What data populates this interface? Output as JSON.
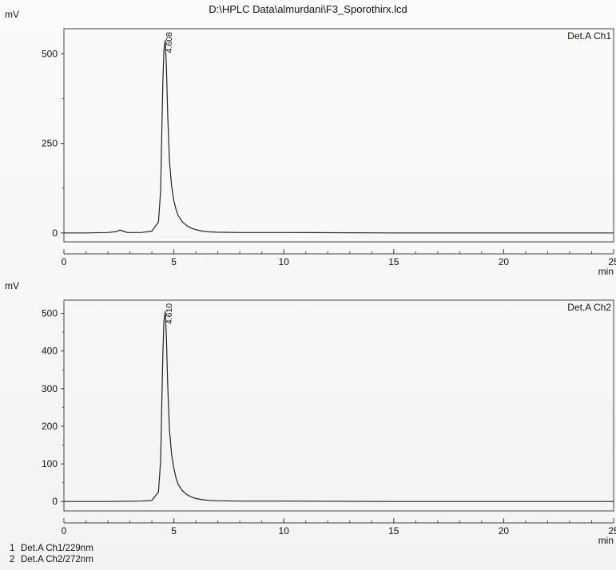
{
  "file_title": "D:\\HPLC Data\\almurdani\\F3_Sporothirx.lcd",
  "chart_data": [
    {
      "type": "line",
      "channel_label": "Det.A Ch1",
      "ylabel": "mV",
      "xlabel": "min",
      "xlim": [
        0,
        25
      ],
      "ylim": [
        -25,
        570
      ],
      "x_ticks": [
        0,
        5,
        10,
        15,
        20,
        25
      ],
      "y_ticks": [
        0,
        250,
        500
      ],
      "grid": false,
      "peak_annotation": {
        "x": 4.608,
        "y": 538,
        "label": "4.608"
      },
      "series": [
        {
          "x": [
            0,
            1.0,
            2.0,
            2.4,
            2.55,
            2.7,
            2.9,
            3.5,
            4.0,
            4.3,
            4.4,
            4.45,
            4.5,
            4.55,
            4.608,
            4.66,
            4.72,
            4.8,
            4.9,
            5.0,
            5.1,
            5.2,
            5.4,
            5.6,
            5.8,
            6.0,
            6.3,
            6.6,
            7.0,
            8.0,
            10,
            15,
            20,
            25
          ],
          "y": [
            0,
            0,
            1,
            4,
            8,
            5,
            1,
            1,
            5,
            30,
            120,
            280,
            420,
            510,
            538,
            470,
            330,
            200,
            130,
            90,
            65,
            48,
            30,
            20,
            13,
            9,
            5,
            3,
            2,
            1,
            1,
            0,
            0,
            0
          ]
        }
      ]
    },
    {
      "type": "line",
      "channel_label": "Det.A Ch2",
      "ylabel": "mV",
      "xlabel": "min",
      "xlim": [
        0,
        25
      ],
      "ylim": [
        -25,
        535
      ],
      "x_ticks": [
        0,
        5,
        10,
        15,
        20,
        25
      ],
      "y_ticks": [
        0,
        100,
        200,
        300,
        400,
        500
      ],
      "grid": false,
      "peak_annotation": {
        "x": 4.61,
        "y": 505,
        "label": "4.610"
      },
      "series": [
        {
          "x": [
            0,
            2.0,
            3.5,
            4.0,
            4.3,
            4.4,
            4.45,
            4.5,
            4.55,
            4.61,
            4.66,
            4.72,
            4.8,
            4.9,
            5.0,
            5.1,
            5.2,
            5.4,
            5.6,
            5.8,
            6.0,
            6.3,
            6.6,
            7.0,
            8.0,
            10,
            15,
            20,
            25
          ],
          "y": [
            0,
            0,
            1,
            3,
            25,
            110,
            260,
            390,
            480,
            505,
            440,
            310,
            190,
            125,
            88,
            62,
            45,
            28,
            18,
            12,
            8,
            5,
            3,
            2,
            1,
            1,
            0,
            0,
            0
          ]
        }
      ]
    }
  ],
  "legend": [
    {
      "num": "1",
      "text": "Det.A Ch1/229nm"
    },
    {
      "num": "2",
      "text": "Det.A Ch2/272nm"
    }
  ]
}
